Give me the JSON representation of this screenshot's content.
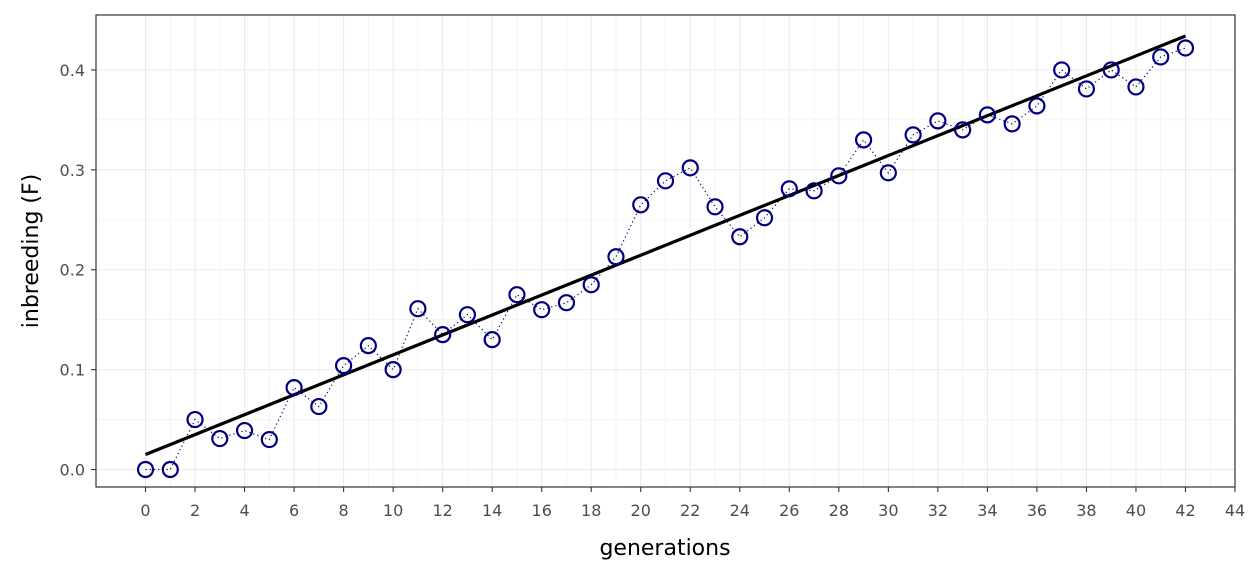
{
  "chart_data": {
    "type": "scatter",
    "title": "",
    "xlabel": "generations",
    "ylabel": "inbreeding (F)",
    "xlim": [
      -2,
      44
    ],
    "ylim": [
      -0.0175,
      0.455
    ],
    "x_ticks": [
      0,
      2,
      4,
      6,
      8,
      10,
      12,
      14,
      16,
      18,
      20,
      22,
      24,
      26,
      28,
      30,
      32,
      34,
      36,
      38,
      40,
      42,
      44
    ],
    "y_ticks": [
      0.0,
      0.1,
      0.2,
      0.3,
      0.4
    ],
    "y_tick_labels": [
      "0.0",
      "0.1",
      "0.2",
      "0.3",
      "0.4"
    ],
    "grid": true,
    "series": [
      {
        "x": [
          0,
          1,
          2,
          3,
          4,
          5,
          6,
          7,
          8,
          9,
          10,
          11,
          12,
          13,
          14,
          15,
          16,
          17,
          18,
          19,
          20,
          21,
          22,
          23,
          24,
          25,
          26,
          27,
          28,
          29,
          30,
          31,
          32,
          33,
          34,
          35,
          36,
          37,
          38,
          39,
          40,
          41,
          42
        ],
        "values": [
          0.0,
          0.0,
          0.05,
          0.031,
          0.039,
          0.03,
          0.082,
          0.063,
          0.104,
          0.124,
          0.1,
          0.161,
          0.135,
          0.155,
          0.13,
          0.175,
          0.16,
          0.167,
          0.185,
          0.213,
          0.265,
          0.289,
          0.302,
          0.263,
          0.233,
          0.252,
          0.281,
          0.279,
          0.294,
          0.33,
          0.297,
          0.335,
          0.349,
          0.34,
          0.355,
          0.346,
          0.364,
          0.4,
          0.381,
          0.4,
          0.383,
          0.413,
          0.422
        ],
        "marker": "open-circle",
        "connect": "dotted",
        "color": "#000080"
      }
    ],
    "trend_line": {
      "x": [
        0,
        42
      ],
      "values": [
        0.015,
        0.434
      ],
      "color": "#000000"
    }
  }
}
